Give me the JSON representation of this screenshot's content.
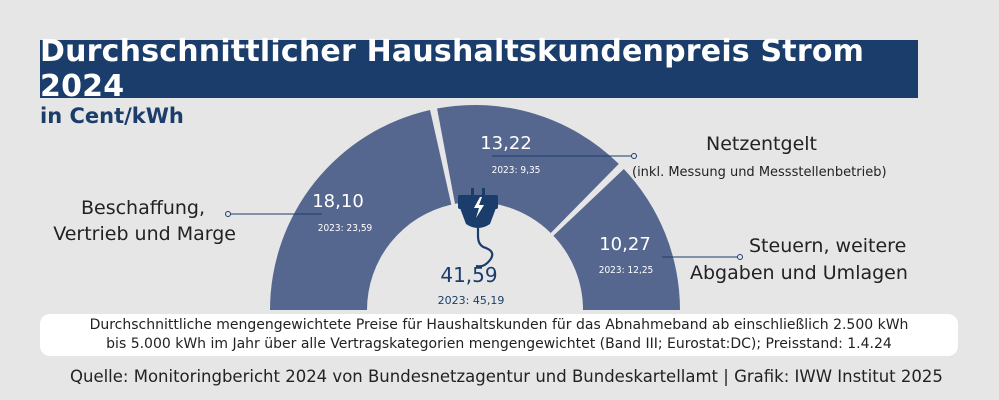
{
  "title": "Durchschnittlicher Haushaltskundenpreis Strom 2024",
  "unit_label": "in Cent/kWh",
  "chart_data": {
    "type": "pie",
    "subtype": "half-donut",
    "unit": "Cent/kWh",
    "categories": [
      "Beschaffung, Vertrieb und Marge",
      "Netzentgelt (inkl. Messung und Messstellenbetrieb)",
      "Steuern, weitere Abgaben und Umlagen"
    ],
    "values": [
      18.1,
      13.22,
      10.27
    ],
    "values_2023": [
      23.59,
      9.35,
      12.25
    ],
    "total": 41.59,
    "total_2023": 45.19
  },
  "segments": [
    {
      "value": "18,10",
      "prev": "2023: 23,59",
      "label_lines": [
        "Beschaffung,",
        "Vertrieb und Marge"
      ]
    },
    {
      "value": "13,22",
      "prev": "2023: 9,35",
      "label_lines": [
        "Netzentgelt"
      ],
      "label_note": "(inkl. Messung und Messstellenbetrieb)"
    },
    {
      "value": "10,27",
      "prev": "2023: 12,25",
      "label_lines": [
        "Steuern, weitere",
        "Abgaben und Umlagen"
      ]
    }
  ],
  "total": {
    "value": "41,59",
    "prev": "2023: 45,19"
  },
  "footnote_lines": [
    "Durchschnittliche mengengewichtete Preise für Haushaltskunden für das Abnahmeband ab einschließlich 2.500 kWh",
    "bis 5.000 kWh im Jahr über alle Vertragskategorien mengengewichtet (Band III; Eurostat:DC); Preisstand: 1.4.24"
  ],
  "source": "Quelle: Monitoringbericht 2024 von Bundesnetzagentur und Bundeskartellamt | Grafik: IWW Institut 2025",
  "colors": {
    "segment": "#56678f",
    "navy": "#1b3d6b",
    "background": "#e6e6e6"
  },
  "icon": "plug-icon"
}
